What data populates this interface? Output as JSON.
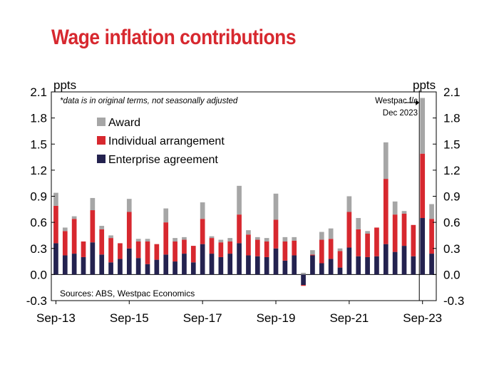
{
  "page": {
    "title": "Wage inflation contributions"
  },
  "chart_data": {
    "type": "bar",
    "stacked": true,
    "title": "Wage inflation contributions",
    "ylabel_left": "ppts",
    "ylabel_right": "ppts",
    "ylim": [
      -0.3,
      2.1
    ],
    "yticks": [
      -0.3,
      0.0,
      0.3,
      0.6,
      0.9,
      1.2,
      1.5,
      1.8,
      2.1
    ],
    "ytick_labels": [
      "-0.3",
      "0.0",
      "0.3",
      "0.6",
      "0.9",
      "1.2",
      "1.5",
      "1.8",
      "2.1"
    ],
    "x_tick_labels": [
      {
        "label": "Sep-13",
        "index": 0
      },
      {
        "label": "Sep-15",
        "index": 8
      },
      {
        "label": "Sep-17",
        "index": 16
      },
      {
        "label": "Sep-19",
        "index": 24
      },
      {
        "label": "Sep-21",
        "index": 32
      },
      {
        "label": "Sep-23",
        "index": 40
      }
    ],
    "forecast_start_index": 40,
    "note": "*data is in original terms, not seasonally adjusted",
    "forecast_label_line1": "Westpac f/c",
    "forecast_label_line2": "Dec 2023",
    "source": "Sources: ABS, Westpac Economics",
    "legend_position": "top-left",
    "legend": [
      "Award",
      "Individual arrangement",
      "Enterprise agreement"
    ],
    "series": [
      {
        "name": "Enterprise agreement",
        "color": "#24224f",
        "values": [
          0.36,
          0.22,
          0.24,
          0.2,
          0.37,
          0.23,
          0.14,
          0.18,
          0.3,
          0.19,
          0.12,
          0.17,
          0.23,
          0.15,
          0.24,
          0.14,
          0.35,
          0.24,
          0.2,
          0.24,
          0.36,
          0.22,
          0.21,
          0.2,
          0.3,
          0.16,
          0.22,
          -0.12,
          0.22,
          0.13,
          0.18,
          0.08,
          0.31,
          0.21,
          0.2,
          0.21,
          0.35,
          0.26,
          0.33,
          0.21,
          0.65,
          0.24
        ]
      },
      {
        "name": "Individual arrangement",
        "color": "#d7282f",
        "values": [
          0.43,
          0.28,
          0.4,
          0.18,
          0.37,
          0.29,
          0.28,
          0.18,
          0.42,
          0.19,
          0.26,
          0.18,
          0.37,
          0.23,
          0.16,
          0.19,
          0.29,
          0.18,
          0.17,
          0.14,
          0.33,
          0.24,
          0.19,
          0.18,
          0.33,
          0.22,
          0.17,
          -0.01,
          0.01,
          0.27,
          0.23,
          0.19,
          0.41,
          0.31,
          0.27,
          0.33,
          0.75,
          0.43,
          0.37,
          0.36,
          0.74,
          0.4
        ]
      },
      {
        "name": "Award",
        "color": "#a6a6a6",
        "values": [
          0.15,
          0.04,
          0.03,
          0.0,
          0.14,
          0.04,
          0.03,
          0.0,
          0.15,
          0.03,
          0.03,
          0.0,
          0.16,
          0.04,
          0.03,
          0.0,
          0.19,
          0.02,
          0.03,
          0.04,
          0.33,
          0.05,
          0.03,
          0.04,
          0.3,
          0.05,
          0.04,
          0.02,
          0.05,
          0.09,
          0.12,
          0.03,
          0.18,
          0.13,
          0.03,
          0.0,
          0.42,
          0.15,
          0.03,
          0.0,
          0.64,
          0.17
        ]
      }
    ]
  }
}
